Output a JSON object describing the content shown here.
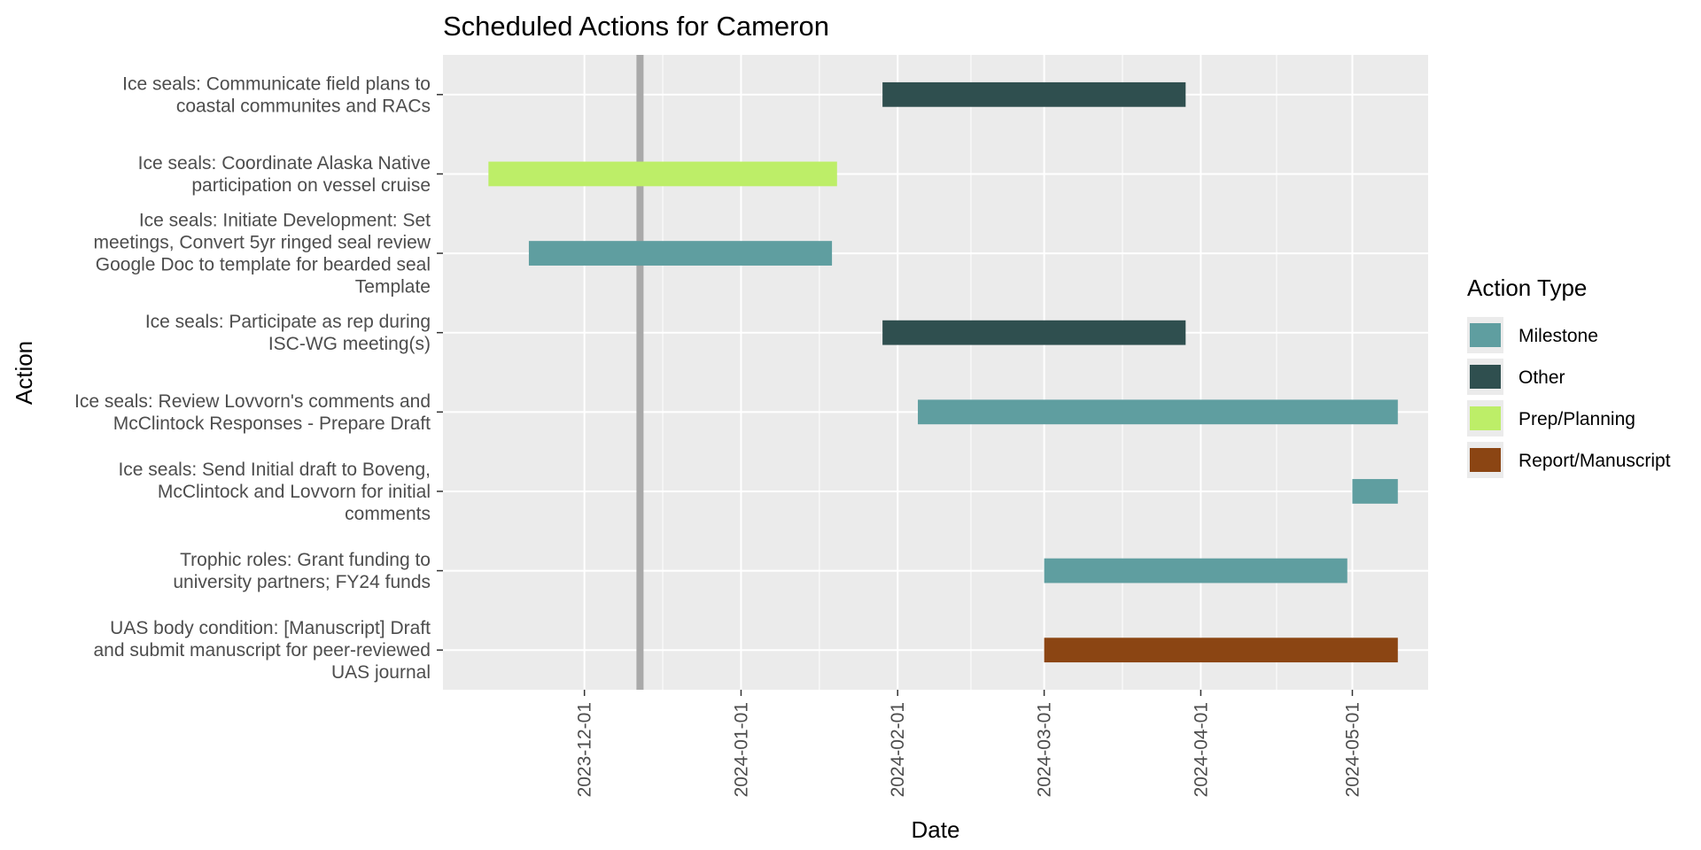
{
  "chart_data": {
    "type": "gantt",
    "title": "Scheduled Actions for Cameron",
    "xlabel": "Date",
    "ylabel": "Action",
    "xlim": [
      "2023-11-03",
      "2024-05-16"
    ],
    "x_ticks": [
      "2023-12-01",
      "2024-01-01",
      "2024-02-01",
      "2024-03-01",
      "2024-04-01",
      "2024-05-01"
    ],
    "reference_line": "2023-12-12",
    "grid": true,
    "legend": {
      "title": "Action Type",
      "placement": "right",
      "items": [
        {
          "label": "Milestone",
          "color": "#5F9EA0"
        },
        {
          "label": "Other",
          "color": "#2F4F4F"
        },
        {
          "label": "Prep/Planning",
          "color": "#BDEE68"
        },
        {
          "label": "Report/Manuscript",
          "color": "#8B4513"
        }
      ]
    },
    "tasks": [
      {
        "label_lines": [
          "Ice seals: Communicate field plans to",
          "coastal communites and RACs"
        ],
        "type": "Other",
        "start": "2024-01-29",
        "end": "2024-03-29"
      },
      {
        "label_lines": [
          "Ice seals: Coordinate Alaska Native",
          "participation on vessel cruise"
        ],
        "type": "Prep/Planning",
        "start": "2023-11-12",
        "end": "2024-01-20"
      },
      {
        "label_lines": [
          "Ice seals: Initiate Development: Set",
          "meetings, Convert 5yr ringed seal review",
          "Google Doc to template for bearded seal",
          "Template"
        ],
        "type": "Milestone",
        "start": "2023-11-20",
        "end": "2024-01-19"
      },
      {
        "label_lines": [
          "Ice seals: Participate as rep during",
          "ISC-WG meeting(s)"
        ],
        "type": "Other",
        "start": "2024-01-29",
        "end": "2024-03-29"
      },
      {
        "label_lines": [
          "Ice seals: Review Lovvorn's comments and",
          "McClintock Responses - Prepare Draft"
        ],
        "type": "Milestone",
        "start": "2024-02-05",
        "end": "2024-05-10"
      },
      {
        "label_lines": [
          "Ice seals: Send Initial draft to Boveng,",
          "McClintock and Lovvorn for initial",
          "comments"
        ],
        "type": "Milestone",
        "start": "2024-05-01",
        "end": "2024-05-10"
      },
      {
        "label_lines": [
          "Trophic roles: Grant funding to",
          "university partners; FY24 funds"
        ],
        "type": "Milestone",
        "start": "2024-03-01",
        "end": "2024-04-30"
      },
      {
        "label_lines": [
          "UAS body condition: [Manuscript] Draft",
          "and submit manuscript for peer-reviewed",
          "UAS journal"
        ],
        "type": "Report/Manuscript",
        "start": "2024-03-01",
        "end": "2024-05-10"
      }
    ]
  }
}
